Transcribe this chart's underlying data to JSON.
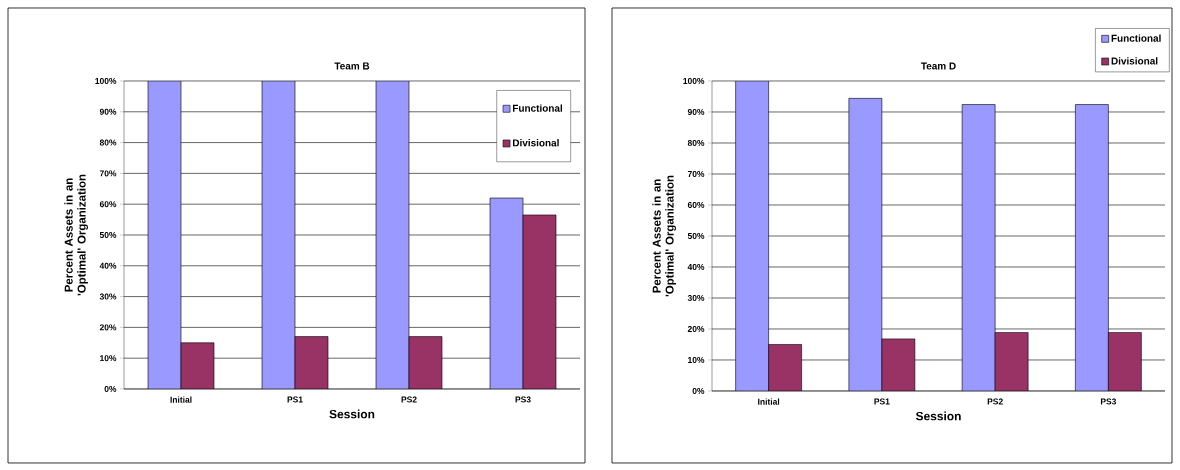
{
  "chart_data": [
    {
      "type": "bar",
      "title": "Team B",
      "xlabel": "Session",
      "ylabel": "Percent Assets in an 'Optimal' Organization",
      "categories": [
        "Initial",
        "PS1",
        "PS2",
        "PS3"
      ],
      "series": [
        {
          "name": "Functional",
          "color": "#9999ff",
          "values": [
            100,
            100,
            100,
            62
          ]
        },
        {
          "name": "Divisional",
          "color": "#993366",
          "values": [
            15,
            17,
            17,
            56.5
          ]
        }
      ],
      "ylim": [
        0,
        100
      ],
      "yticks": [
        {
          "value": 0,
          "label": "0%"
        },
        {
          "value": 10,
          "label": "10%"
        },
        {
          "value": 20,
          "label": "20%"
        },
        {
          "value": 30,
          "label": "30%"
        },
        {
          "value": 40,
          "label": "40%"
        },
        {
          "value": 50,
          "label": "50%"
        },
        {
          "value": 60,
          "label": "60%"
        },
        {
          "value": 70,
          "label": "70%"
        },
        {
          "value": 80,
          "label": "80%"
        },
        {
          "value": 90,
          "label": "90%"
        },
        {
          "value": 100,
          "label": "100%"
        }
      ],
      "grid": "y",
      "legend": "top right"
    },
    {
      "type": "bar",
      "title": "Team D",
      "xlabel": "Session",
      "ylabel": "Percent Assets in an 'Optimal' Organization",
      "categories": [
        "Initial",
        "PS1",
        "PS2",
        "PS3"
      ],
      "series": [
        {
          "name": "Functional",
          "color": "#9999ff",
          "values": [
            100,
            94.4,
            92.4,
            92.4
          ]
        },
        {
          "name": "Divisional",
          "color": "#993366",
          "values": [
            15,
            16.8,
            18.9,
            18.9
          ]
        }
      ],
      "ylim": [
        0,
        100
      ],
      "yticks": [
        {
          "value": 0,
          "label": "0%"
        },
        {
          "value": 10,
          "label": "10%"
        },
        {
          "value": 20,
          "label": "20%"
        },
        {
          "value": 30,
          "label": "30%"
        },
        {
          "value": 40,
          "label": "40%"
        },
        {
          "value": 50,
          "label": "50%"
        },
        {
          "value": 60,
          "label": "60%"
        },
        {
          "value": 70,
          "label": "70%"
        },
        {
          "value": 80,
          "label": "80%"
        },
        {
          "value": 90,
          "label": "90%"
        },
        {
          "value": 100,
          "label": "100%"
        }
      ],
      "grid": "y",
      "legend": "top right"
    }
  ]
}
